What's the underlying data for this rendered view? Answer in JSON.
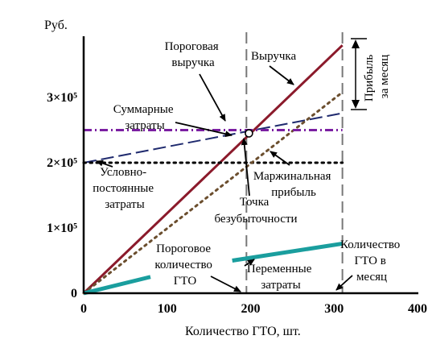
{
  "chart_data": {
    "type": "line",
    "ylabel": "Руб.",
    "xlabel": "Количество ГТО, шт.",
    "xlim": [
      0,
      400
    ],
    "ylim": [
      0,
      400000
    ],
    "x_ticks": [
      0,
      100,
      200,
      300,
      400
    ],
    "x_tick_labels": [
      "0",
      "100",
      "200",
      "300",
      "400"
    ],
    "y_ticks": [
      0,
      100000,
      200000,
      300000
    ],
    "y_tick_labels": [
      "0",
      "1×10⁵",
      "2×10⁵",
      "3×10⁵"
    ],
    "series": [
      {
        "name": "Выручка",
        "color": "#8b1a2b",
        "style": "solid",
        "x": [
          0,
          310
        ],
        "y": [
          0,
          380000
        ]
      },
      {
        "name": "Суммарные затраты",
        "color": "#1f2a6e",
        "style": "dashed",
        "x": [
          0,
          310
        ],
        "y": [
          200000,
          276000
        ]
      },
      {
        "name": "Условно-постоянные затраты",
        "color": "#000000",
        "style": "dotted",
        "x": [
          0,
          310
        ],
        "y": [
          200000,
          200000
        ]
      },
      {
        "name": "Маржинальная прибыль",
        "color": "#6b4e2e",
        "style": "dotted",
        "x": [
          0,
          310
        ],
        "y": [
          0,
          308000
        ]
      },
      {
        "name": "Пороговая выручка",
        "color": "#7b1fa2",
        "style": "dashdot",
        "x": [
          0,
          310
        ],
        "y": [
          250000,
          250000
        ]
      },
      {
        "name": "Переменные затраты",
        "color": "#1a9e9e",
        "style": "solid",
        "segments": [
          {
            "x": [
              0,
              80
            ],
            "y": [
              0,
              25000
            ]
          },
          {
            "x": [
              178,
              310
            ],
            "y": [
              50000,
              76000
            ]
          }
        ]
      }
    ],
    "break_even": {
      "x": 198,
      "y": 245000
    },
    "vlines": [
      {
        "x": 195,
        "label": "Пороговое количество ГТО"
      },
      {
        "x": 310,
        "label": "Количество ГТО в месяц"
      }
    ],
    "annotations": {
      "revenue": "Выручка",
      "threshold_revenue": [
        "Пороговая",
        "выручка"
      ],
      "total_costs": [
        "Суммарные",
        "затраты"
      ],
      "fixed_costs": [
        "Условно-",
        "постоянные",
        "затраты"
      ],
      "margin_profit": [
        "Маржинальная",
        "прибыль"
      ],
      "break_even_point": [
        "Точка",
        "безубыточности"
      ],
      "threshold_qty": [
        "Пороговое",
        "количество",
        "ГТО"
      ],
      "variable_costs": [
        "Переменные",
        "затраты"
      ],
      "monthly_qty": [
        "Количество",
        "ГТО в",
        "месяц"
      ],
      "monthly_profit": [
        "Прибыль",
        "за месяц"
      ]
    }
  }
}
